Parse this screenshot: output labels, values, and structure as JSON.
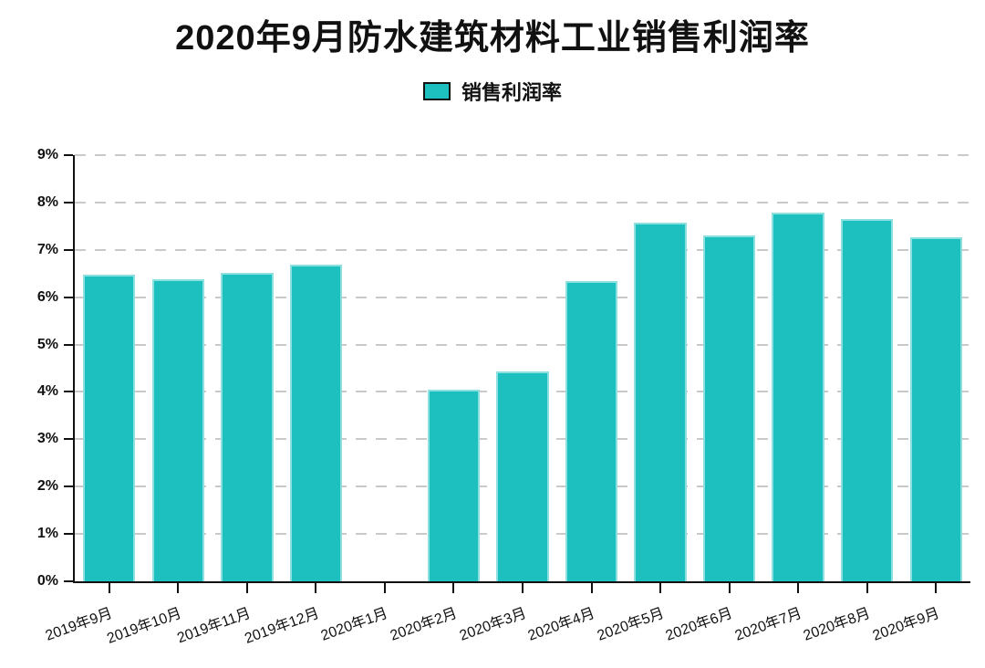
{
  "title": "2020年9月防水建筑材料工业销售利润率",
  "legend": {
    "label": "销售利润率",
    "swatch_color": "#1ebfbf"
  },
  "chart_data": {
    "type": "bar",
    "title": "2020年9月防水建筑材料工业销售利润率",
    "categories": [
      "2019年9月",
      "2019年10月",
      "2019年11月",
      "2019年12月",
      "2020年1月",
      "2020年2月",
      "2020年3月",
      "2020年4月",
      "2020年5月",
      "2020年6月",
      "2020年7月",
      "2020年8月",
      "2020年9月"
    ],
    "series": [
      {
        "name": "销售利润率",
        "values": [
          6.47,
          6.38,
          6.52,
          6.68,
          null,
          4.05,
          4.44,
          6.35,
          7.58,
          7.3,
          7.78,
          7.66,
          7.26
        ]
      }
    ],
    "xlabel": "",
    "ylabel": "",
    "ylim": [
      0,
      9
    ],
    "y_tick_labels": [
      "0%",
      "1%",
      "2%",
      "3%",
      "4%",
      "5%",
      "6%",
      "7%",
      "8%",
      "9%"
    ],
    "x_tick_rotation_deg": -20,
    "grid": "horizontal dashed",
    "gridline_color": "#c9c9c9",
    "axis_color": "#111111",
    "legend_position": "top",
    "bar_color": "#1ebfbf",
    "bar_border_color": "#8ce0e0",
    "values_unit": "%"
  }
}
